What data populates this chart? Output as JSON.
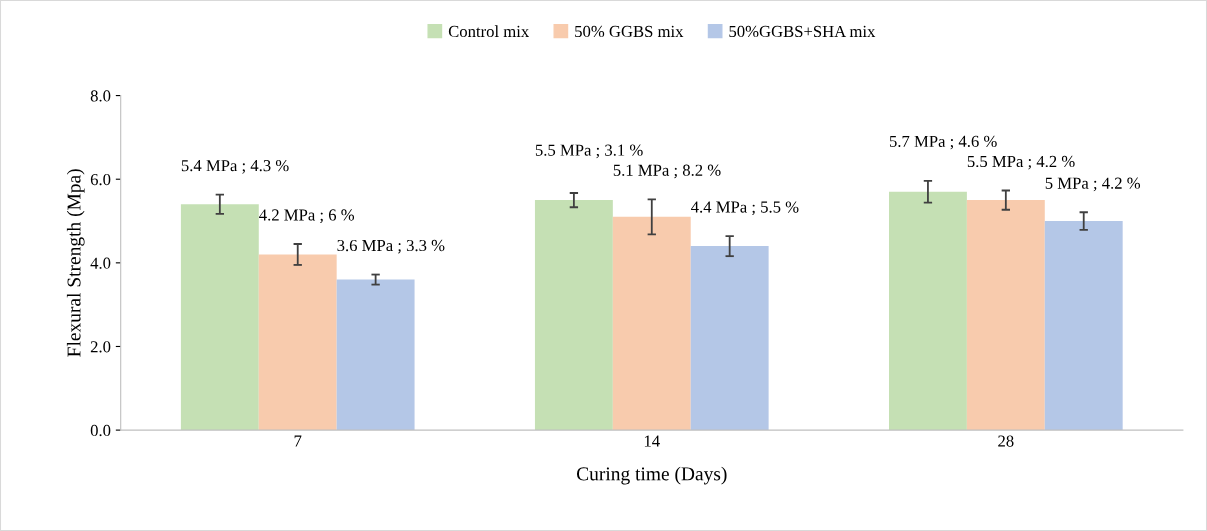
{
  "chart_data": {
    "type": "bar",
    "xlabel": "Curing time (Days)",
    "ylabel": "Flexural Strength (Mpa)",
    "categories": [
      "7",
      "14",
      "28"
    ],
    "series": [
      {
        "name": "Control mix",
        "color": "#c5e0b4",
        "values": [
          5.4,
          5.5,
          5.7
        ],
        "errors": [
          0.23,
          0.17,
          0.26
        ],
        "value_labels": [
          "5.4 MPa ; 4.3 %",
          "5.5 MPa ; 3.1 %",
          "5.7 MPa ; 4.6 %"
        ]
      },
      {
        "name": "50% GGBS mix",
        "color": "#f8cbad",
        "values": [
          4.2,
          5.1,
          5.5
        ],
        "errors": [
          0.25,
          0.42,
          0.23
        ],
        "value_labels": [
          "4.2 MPa ; 6 %",
          "5.1 MPa ; 8.2 %",
          "5.5 MPa ; 4.2 %"
        ]
      },
      {
        "name": "50%GGBS+SHA mix",
        "color": "#b4c7e7",
        "values": [
          3.6,
          4.4,
          5.0
        ],
        "errors": [
          0.12,
          0.24,
          0.21
        ],
        "value_labels": [
          "3.6 MPa ; 3.3 %",
          "4.4 MPa ; 5.5 %",
          "5 MPa ; 4.2 %"
        ]
      }
    ],
    "ylim": [
      0,
      8
    ],
    "yticks": [
      {
        "value": 0,
        "label": "0.0"
      },
      {
        "value": 2,
        "label": "2.0"
      },
      {
        "value": 4,
        "label": "4.0"
      },
      {
        "value": 6,
        "label": "6.0"
      },
      {
        "value": 8,
        "label": "8.0"
      }
    ],
    "grid": false,
    "legend": "top"
  }
}
